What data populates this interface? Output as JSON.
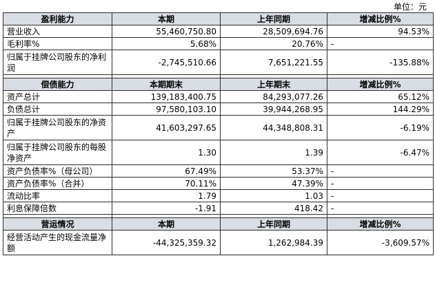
{
  "unit_label": "单位：元",
  "sections": [
    {
      "header": [
        "盈利能力",
        "本期",
        "上年同期",
        "增减比例%"
      ],
      "rows": [
        {
          "label": "营业收入",
          "v1": "55,460,750.80",
          "v2": "28,509,694.76",
          "v3": "94.53%"
        },
        {
          "label": "毛利率%",
          "v1": "5.68%",
          "v2": "20.76%",
          "v3": "-"
        },
        {
          "label": "归属于挂牌公司股东的净利润",
          "v1": "-2,745,510.66",
          "v2": "7,651,221.55",
          "v3": "-135.88%"
        }
      ]
    },
    {
      "header": [
        "偿债能力",
        "本期期末",
        "上年期末",
        "增减比例%"
      ],
      "rows": [
        {
          "label": "资产总计",
          "v1": "139,183,400.75",
          "v2": "84,293,077.26",
          "v3": "65.12%"
        },
        {
          "label": "负债总计",
          "v1": "97,580,103.10",
          "v2": "39,944,268.95",
          "v3": "144.29%"
        },
        {
          "label": "归属于挂牌公司股东的净资产",
          "v1": "41,603,297.65",
          "v2": "44,348,808.31",
          "v3": "-6.19%"
        },
        {
          "label": "归属于挂牌公司股东的每股净资产",
          "v1": "1.30",
          "v2": "1.39",
          "v3": "-6.47%"
        },
        {
          "label": "资产负债率%（母公司）",
          "v1": "67.49%",
          "v2": "53.37%",
          "v3": "-"
        },
        {
          "label": "资产负债率%（合并）",
          "v1": "70.11%",
          "v2": "47.39%",
          "v3": "-"
        },
        {
          "label": "流动比率",
          "v1": "1.79",
          "v2": "1.03",
          "v3": "-"
        },
        {
          "label": "利息保障倍数",
          "v1": "-1.91",
          "v2": "418.42",
          "v3": "-"
        }
      ]
    },
    {
      "header": [
        "营运情况",
        "本期",
        "上年同期",
        "增减比例%"
      ],
      "rows": [
        {
          "label": "经营活动产生的现金流量净额",
          "v1": "-44,325,359.32",
          "v2": "1,262,984.39",
          "v3": "-3,609.57%"
        }
      ]
    }
  ]
}
